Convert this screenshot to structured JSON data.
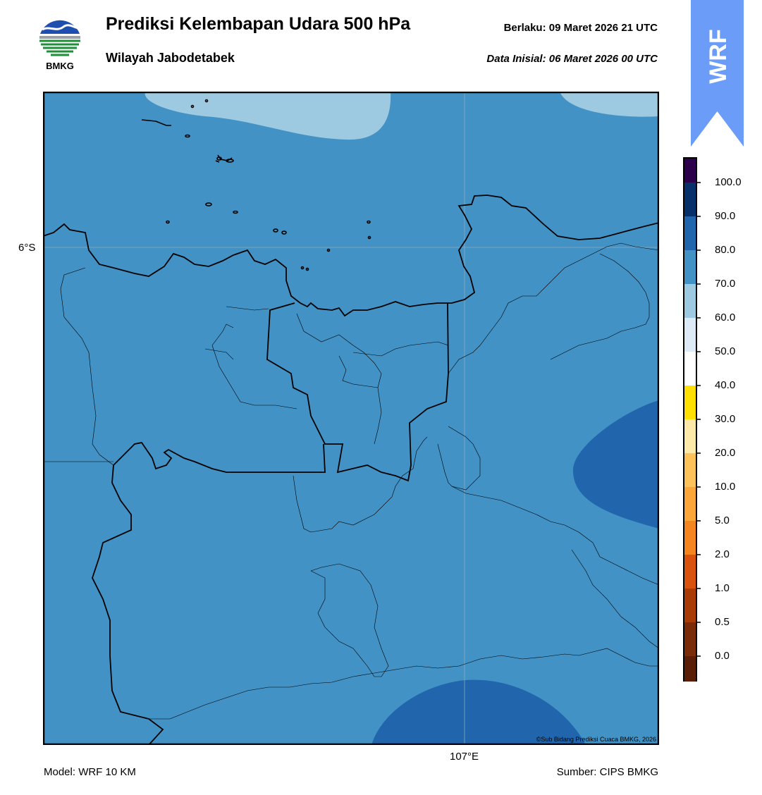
{
  "header": {
    "title": "Prediksi Kelembapan Udara 500 hPa",
    "subtitle": "Wilayah Jabodetabek",
    "berlaku": "Berlaku:  09 Maret 2026 21 UTC",
    "data_inisial": "Data Inisial:  06 Maret 2026 00 UTC"
  },
  "logo": {
    "text": "BMKG",
    "icon": "bmkg-logo-icon"
  },
  "ribbon": {
    "text": "WRF",
    "color": "#6b9cf8"
  },
  "map": {
    "lat_tick": "6°S",
    "lon_tick": "107°E",
    "credit": "©Sub Bidang Prediksi Cuaca BMKG, 2026",
    "field_color": "#4292c6",
    "low_region_color": "#9ecae1",
    "high_region_color": "#2166ac"
  },
  "colorbar": {
    "labels": [
      "100.0",
      "90.0",
      "80.0",
      "70.0",
      "60.0",
      "50.0",
      "40.0",
      "30.0",
      "20.0",
      "10.0",
      "5.0",
      "2.0",
      "1.0",
      "0.5",
      "0.0"
    ],
    "colors_top_to_bottom": [
      "#2d004b",
      "#08306b",
      "#2166ac",
      "#4292c6",
      "#9ecae1",
      "#deebf7",
      "#ffffff",
      "#ffe000",
      "#ffe9a8",
      "#fdc25a",
      "#fca63a",
      "#f5851f",
      "#d9530e",
      "#a83b06",
      "#7a2c08",
      "#5a1e06",
      "#b2121f",
      "#e63a2e"
    ]
  },
  "footer": {
    "model": "Model: WRF 10 KM",
    "source": "Sumber: CIPS BMKG"
  }
}
